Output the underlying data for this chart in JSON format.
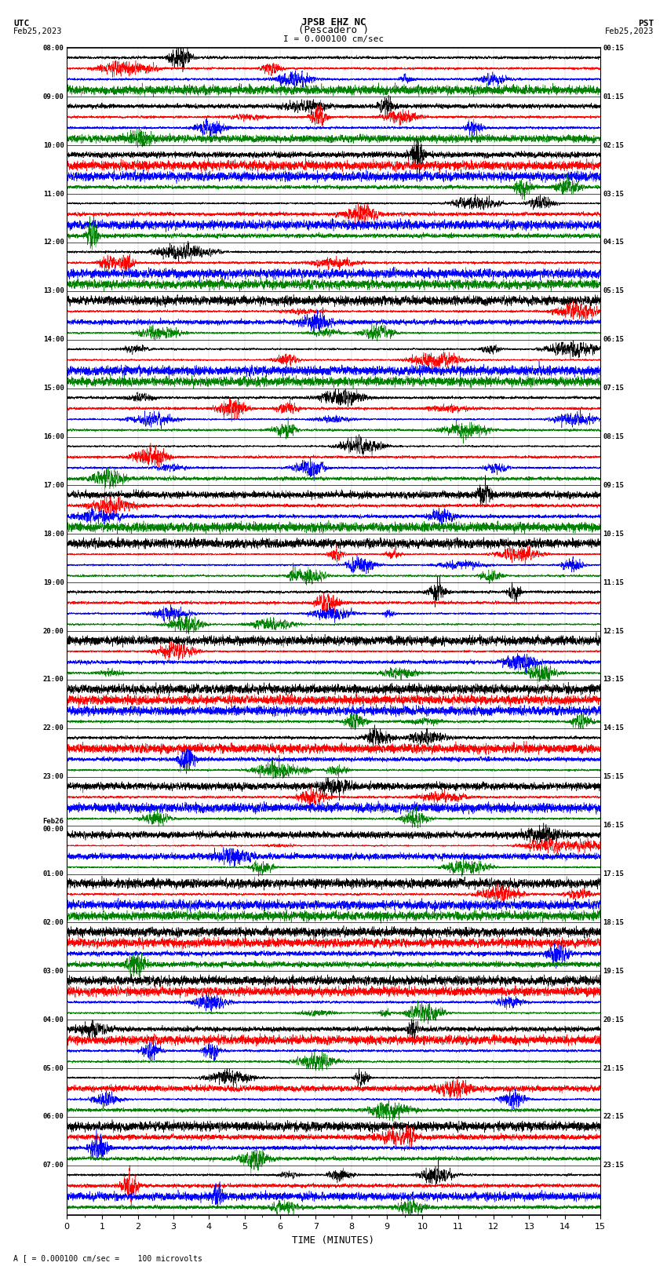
{
  "title_line1": "JPSB EHZ NC",
  "title_line2": "(Pescadero )",
  "scale_label": "I = 0.000100 cm/sec",
  "utc_label": "UTC",
  "utc_date": "Feb25,2023",
  "pst_label": "PST",
  "pst_date": "Feb25,2023",
  "bottom_note": "A [ = 0.000100 cm/sec =    100 microvolts",
  "xlabel": "TIME (MINUTES)",
  "left_times": [
    "08:00",
    "09:00",
    "10:00",
    "11:00",
    "12:00",
    "13:00",
    "14:00",
    "15:00",
    "16:00",
    "17:00",
    "18:00",
    "19:00",
    "20:00",
    "21:00",
    "22:00",
    "23:00",
    "Feb26\n00:00",
    "01:00",
    "02:00",
    "03:00",
    "04:00",
    "05:00",
    "06:00",
    "07:00"
  ],
  "right_times": [
    "00:15",
    "01:15",
    "02:15",
    "03:15",
    "04:15",
    "05:15",
    "06:15",
    "07:15",
    "08:15",
    "09:15",
    "10:15",
    "11:15",
    "12:15",
    "13:15",
    "14:15",
    "15:15",
    "16:15",
    "17:15",
    "18:15",
    "19:15",
    "20:15",
    "21:15",
    "22:15",
    "23:15"
  ],
  "colors": [
    "black",
    "red",
    "blue",
    "green"
  ],
  "bg_color": "white",
  "n_rows": 24,
  "traces_per_row": 4,
  "minutes": 15,
  "fig_width": 8.5,
  "fig_height": 16.13,
  "dpi": 100
}
